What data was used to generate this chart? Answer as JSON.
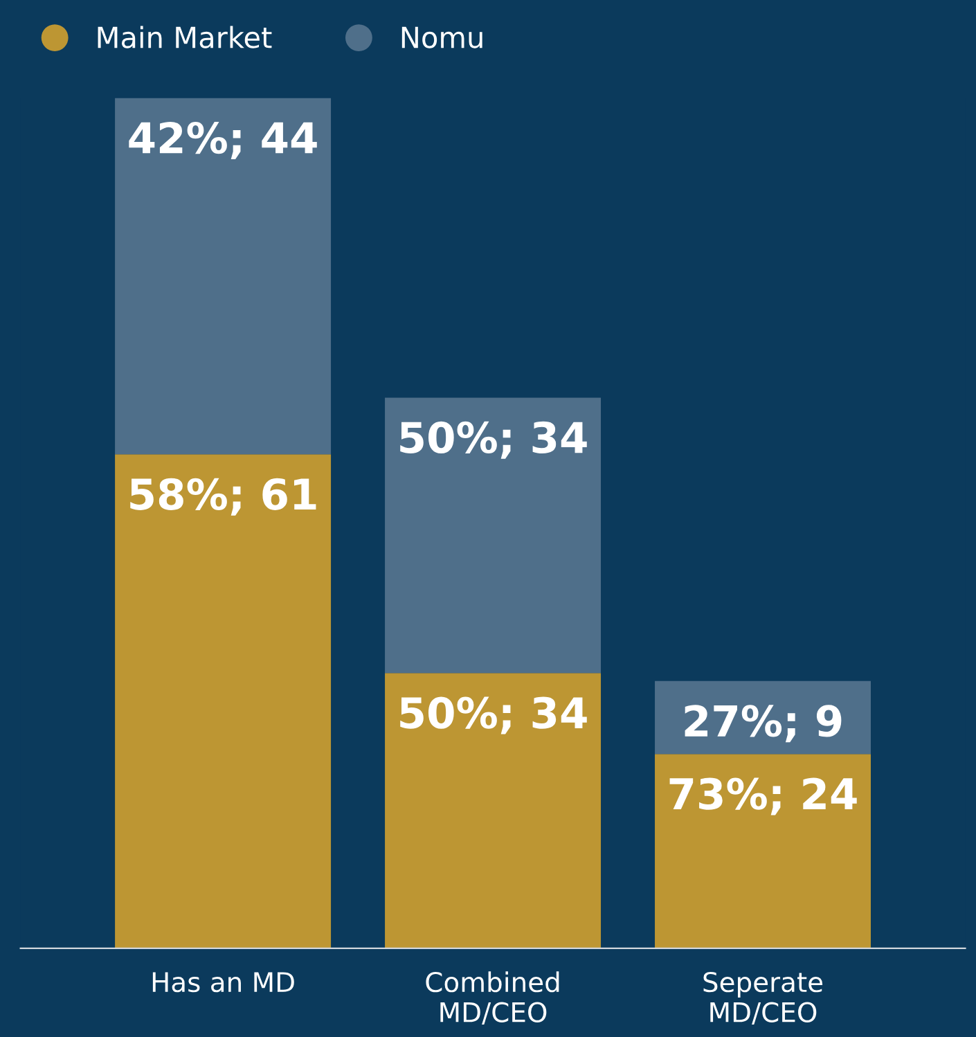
{
  "chart_data": {
    "type": "bar",
    "stacked": true,
    "categories": [
      "Has an MD",
      "Combined\nMD/CEO",
      "Seperate\nMD/CEO"
    ],
    "series": [
      {
        "name": "Main Market",
        "color": "#bd9633",
        "values": [
          61,
          34,
          24
        ],
        "value_labels": [
          "58%; 61",
          "50%; 34",
          "73%; 24"
        ]
      },
      {
        "name": "Nomu",
        "color": "#4f6f8a",
        "values": [
          44,
          34,
          9
        ],
        "value_labels": [
          "42%; 44",
          "50%; 34",
          "27%; 9"
        ]
      }
    ],
    "legend": "top left",
    "grid": false
  }
}
